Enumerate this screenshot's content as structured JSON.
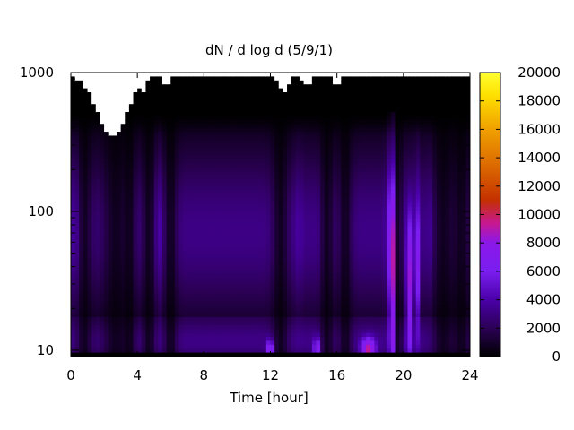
{
  "chart_data": {
    "type": "heatmap",
    "title": "dN / d log d (5/9/1)",
    "xlabel": "Time [hour]",
    "ylabel": "",
    "xlim": [
      0,
      24
    ],
    "ylim": [
      9,
      1000
    ],
    "yscale": "log",
    "x_ticks": [
      0,
      4,
      8,
      12,
      16,
      20,
      24
    ],
    "x_tick_labels": [
      "0",
      "4",
      "8",
      "12",
      "16",
      "20",
      "24"
    ],
    "y_ticks": [
      10,
      100,
      1000
    ],
    "y_tick_labels": [
      "10",
      "100",
      "1000"
    ],
    "colorbar": {
      "range": [
        0,
        20000
      ],
      "ticks": [
        0,
        2000,
        4000,
        6000,
        8000,
        10000,
        12000,
        14000,
        16000,
        18000,
        20000
      ],
      "tick_labels": [
        "0",
        "2000",
        "4000",
        "6000",
        "8000",
        "10000",
        "12000",
        "14000",
        "16000",
        "18000",
        "20000"
      ],
      "colormap": [
        "#000000",
        "#2b0055",
        "#4a00a8",
        "#7a1ef0",
        "#8a18e8",
        "#c81890",
        "#c43000",
        "#d86000",
        "#f0a000",
        "#ffe000",
        "#ffff30"
      ]
    },
    "grid": false,
    "description_values": {
      "diameter_centers": [
        10,
        12,
        15,
        20,
        25,
        30,
        40,
        50,
        60,
        80,
        100,
        130,
        160,
        200,
        250,
        300,
        400,
        500,
        600,
        700,
        800,
        900
      ],
      "time_hours": [
        0,
        0.5,
        1,
        1.5,
        2,
        2.5,
        3,
        3.5,
        4,
        4.5,
        5,
        5.5,
        6,
        6.5,
        7,
        7.5,
        8,
        8.5,
        9,
        9.5,
        10,
        10.5,
        11,
        11.5,
        12,
        12.5,
        13,
        13.5,
        14,
        14.5,
        15,
        15.5,
        16,
        16.5,
        17,
        17.5,
        18,
        18.5,
        19,
        19.5,
        20,
        20.5,
        21,
        21.5,
        22,
        22.5,
        23,
        23.5,
        24
      ],
      "typical_level": 3500,
      "peak_level": 11000,
      "peak_times": [
        19.3,
        20.3
      ]
    }
  }
}
